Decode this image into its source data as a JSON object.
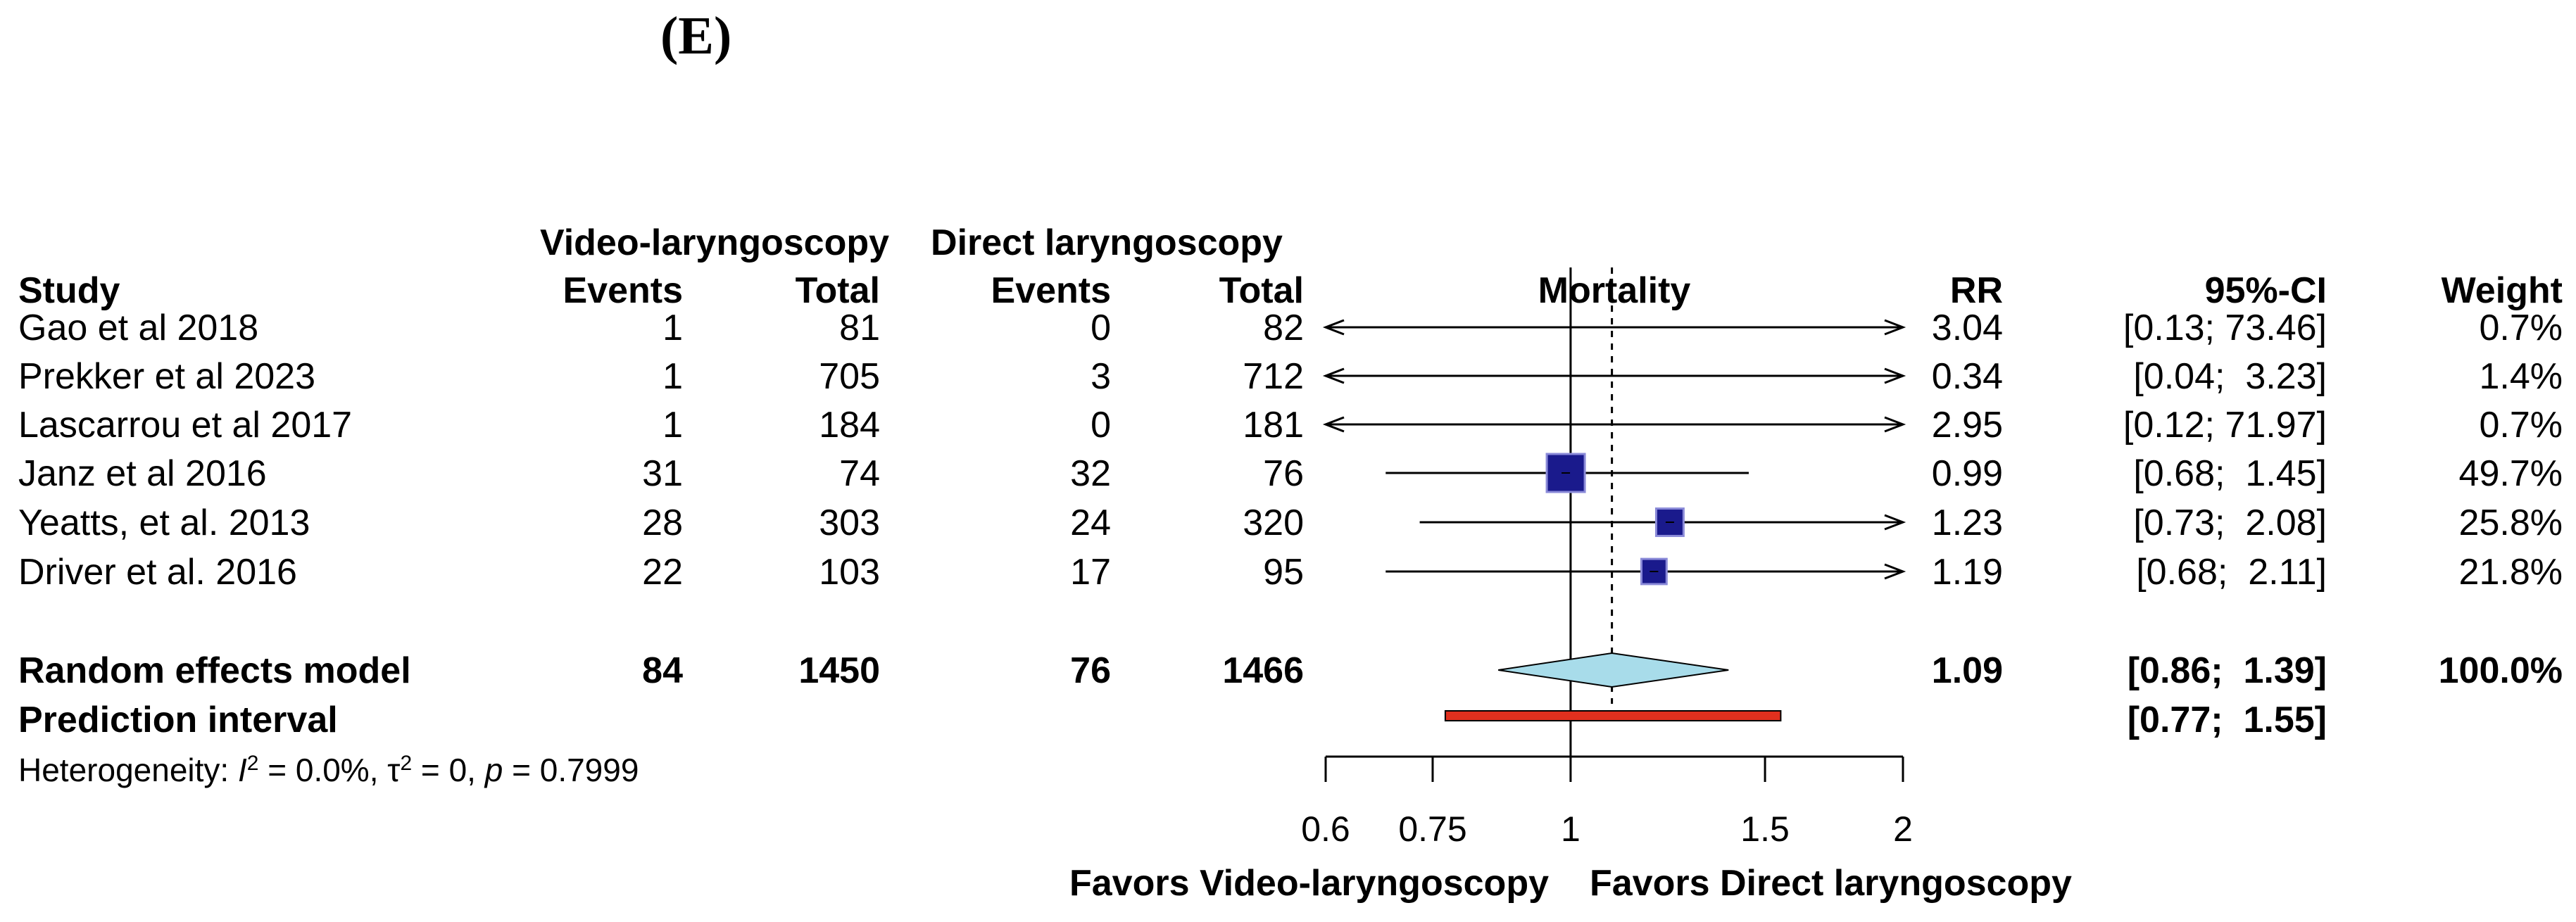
{
  "panel_label": "(E)",
  "headers": {
    "study": "Study",
    "group1": "Video-laryngoscopy",
    "group2": "Direct laryngoscopy",
    "events": "Events",
    "total": "Total",
    "mortality": "Mortality",
    "rr": "RR",
    "ci": "95%-CI",
    "weight": "Weight"
  },
  "studies": [
    {
      "name": "Gao et al 2018",
      "e1": "1",
      "t1": "81",
      "e2": "0",
      "t2": "82",
      "rr_text": "3.04",
      "ci_text": "[0.13; 73.46]",
      "weight_text": "0.7%"
    },
    {
      "name": "Prekker et al 2023",
      "e1": "1",
      "t1": "705",
      "e2": "3",
      "t2": "712",
      "rr_text": "0.34",
      "ci_text": "[0.04;  3.23]",
      "weight_text": "1.4%"
    },
    {
      "name": "Lascarrou et al 2017",
      "e1": "1",
      "t1": "184",
      "e2": "0",
      "t2": "181",
      "rr_text": "2.95",
      "ci_text": "[0.12; 71.97]",
      "weight_text": "0.7%"
    },
    {
      "name": "Janz et al 2016",
      "e1": "31",
      "t1": "74",
      "e2": "32",
      "t2": "76",
      "rr_text": "0.99",
      "ci_text": "[0.68;  1.45]",
      "weight_text": "49.7%"
    },
    {
      "name": "Yeatts, et al. 2013",
      "e1": "28",
      "t1": "303",
      "e2": "24",
      "t2": "320",
      "rr_text": "1.23",
      "ci_text": "[0.73;  2.08]",
      "weight_text": "25.8%"
    },
    {
      "name": "Driver et al. 2016",
      "e1": "22",
      "t1": "103",
      "e2": "17",
      "t2": "95",
      "rr_text": "1.19",
      "ci_text": "[0.68;  2.11]",
      "weight_text": "21.8%"
    }
  ],
  "summary": {
    "label": "Random effects model",
    "e1": "84",
    "t1": "1450",
    "e2": "76",
    "t2": "1466",
    "rr_text": "1.09",
    "ci_text": "[0.86;  1.39]",
    "weight_text": "100.0%"
  },
  "prediction": {
    "label": "Prediction interval",
    "ci_text": "[0.77;  1.55]"
  },
  "heterogeneity": {
    "prefix": "Heterogeneity: ",
    "i_symbol": "I",
    "sup": "2",
    "i2_value": " = 0.0%, ",
    "tau_symbol": "τ",
    "tau_value": " = 0, ",
    "p_symbol": "p",
    "p_value": " = 0.7999"
  },
  "colors": {
    "square": "#1a1a8c",
    "square_outline": "#8a8ad8",
    "diamond": "#a8dcea",
    "prediction": "#e0301e"
  },
  "chart_data": {
    "type": "forest",
    "title": "Mortality",
    "scale": "log",
    "xlim": [
      0.6,
      2
    ],
    "ticks": [
      0.6,
      0.75,
      1,
      1.5,
      2
    ],
    "tick_labels": [
      "0.6",
      "0.75",
      "1",
      "1.5",
      "2"
    ],
    "reference_line": 1,
    "pooled_line": 1.09,
    "favors_left": "Favors Video-laryngoscopy",
    "favors_right": "Favors Direct laryngoscopy",
    "studies": [
      {
        "name": "Gao et al 2018",
        "rr": 3.04,
        "lower": 0.13,
        "upper": 73.46,
        "weight": 0.7
      },
      {
        "name": "Prekker et al 2023",
        "rr": 0.34,
        "lower": 0.04,
        "upper": 3.23,
        "weight": 1.4
      },
      {
        "name": "Lascarrou et al 2017",
        "rr": 2.95,
        "lower": 0.12,
        "upper": 71.97,
        "weight": 0.7
      },
      {
        "name": "Janz et al 2016",
        "rr": 0.99,
        "lower": 0.68,
        "upper": 1.45,
        "weight": 49.7
      },
      {
        "name": "Yeatts, et al. 2013",
        "rr": 1.23,
        "lower": 0.73,
        "upper": 2.08,
        "weight": 25.8
      },
      {
        "name": "Driver et al. 2016",
        "rr": 1.19,
        "lower": 0.68,
        "upper": 2.11,
        "weight": 21.8
      }
    ],
    "pooled": {
      "rr": 1.09,
      "lower": 0.86,
      "upper": 1.39
    },
    "prediction_interval": {
      "lower": 0.77,
      "upper": 1.55
    }
  }
}
